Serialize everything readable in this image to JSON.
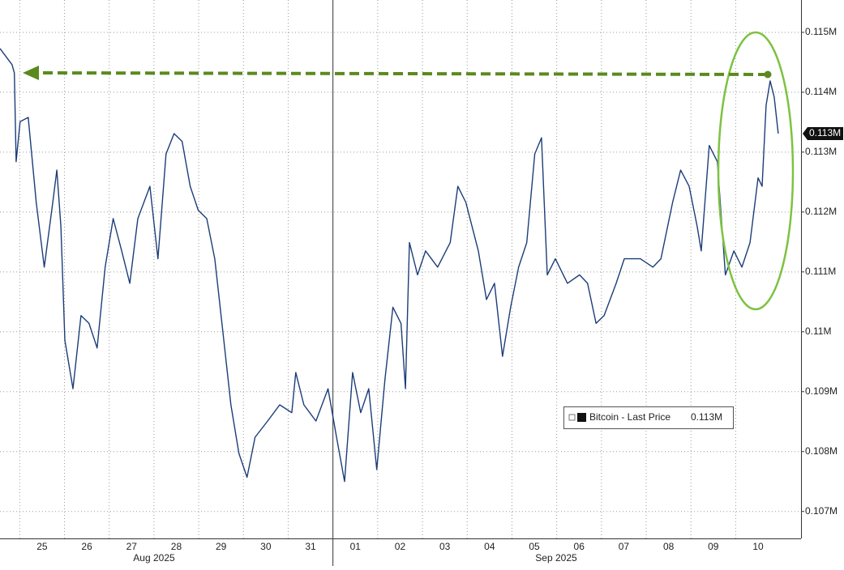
{
  "chart_data": {
    "type": "line",
    "series": [
      {
        "name": "Bitcoin - Last Price",
        "color": "#1c3d78",
        "x": [
          -0.44,
          -0.17,
          -0.12,
          -0.08,
          0.01,
          0.19,
          0.37,
          0.55,
          0.74,
          0.83,
          0.92,
          1.01,
          1.19,
          1.37,
          1.55,
          1.73,
          1.91,
          2.09,
          2.28,
          2.46,
          2.64,
          2.91,
          3.09,
          3.27,
          3.45,
          3.63,
          3.81,
          3.99,
          4.18,
          4.36,
          4.54,
          4.72,
          4.9,
          5.08,
          5.26,
          5.54,
          5.81,
          6.08,
          6.17,
          6.35,
          6.62,
          6.89,
          7.08,
          7.26,
          7.44,
          7.62,
          7.8,
          7.98,
          8.16,
          8.34,
          8.52,
          8.62,
          8.71,
          8.89,
          9.07,
          9.34,
          9.62,
          9.79,
          9.97,
          10.25,
          10.43,
          10.61,
          10.79,
          10.97,
          11.15,
          11.33,
          11.51,
          11.66,
          11.79,
          11.97,
          12.24,
          12.51,
          12.69,
          12.88,
          13.06,
          13.33,
          13.51,
          13.87,
          14.15,
          14.33,
          14.59,
          14.77,
          14.96,
          15.14,
          15.23,
          15.41,
          15.59,
          15.77,
          15.96,
          16.14,
          16.32,
          16.5,
          16.59,
          16.68,
          16.77,
          16.86,
          16.95
        ],
        "values": [
          114730,
          114460,
          114320,
          112840,
          113510,
          113580,
          112160,
          111080,
          112160,
          112700,
          111760,
          109860,
          109050,
          110270,
          110140,
          109730,
          111080,
          111890,
          111350,
          110810,
          111890,
          112430,
          111220,
          112970,
          113310,
          113180,
          112430,
          112030,
          111890,
          111220,
          110000,
          108780,
          107970,
          107570,
          108240,
          108510,
          108780,
          108650,
          109320,
          108780,
          108510,
          109050,
          108240,
          107500,
          109320,
          108650,
          109050,
          107700,
          109190,
          110410,
          110140,
          109050,
          111490,
          110950,
          111350,
          111080,
          111490,
          112430,
          112160,
          111350,
          110540,
          110810,
          109590,
          110410,
          111080,
          111490,
          112970,
          113240,
          110950,
          111220,
          110810,
          110950,
          110810,
          110140,
          110270,
          110810,
          111220,
          111220,
          111080,
          111220,
          112160,
          112700,
          112430,
          111760,
          111350,
          113110,
          112840,
          110950,
          111350,
          111080,
          111490,
          112570,
          112430,
          113780,
          114190,
          113920,
          113310
        ]
      }
    ],
    "ylim": [
      106550,
      115540
    ],
    "yticks": [
      {
        "value": 107000,
        "label": "0.107M"
      },
      {
        "value": 108000,
        "label": "0.108M"
      },
      {
        "value": 109000,
        "label": "0.109M"
      },
      {
        "value": 110000,
        "label": "0.11M"
      },
      {
        "value": 111000,
        "label": "0.111M"
      },
      {
        "value": 112000,
        "label": "0.112M"
      },
      {
        "value": 113000,
        "label": "0.113M"
      },
      {
        "value": 114000,
        "label": "0.114M"
      },
      {
        "value": 115000,
        "label": "0.115M"
      }
    ],
    "xlim": [
      -0.44,
      17.46
    ],
    "xticks": [
      {
        "value": 0,
        "label": "25"
      },
      {
        "value": 1,
        "label": "26"
      },
      {
        "value": 2,
        "label": "27"
      },
      {
        "value": 3,
        "label": "28"
      },
      {
        "value": 4,
        "label": "29"
      },
      {
        "value": 5,
        "label": "30"
      },
      {
        "value": 6,
        "label": "31"
      },
      {
        "value": 7,
        "label": "01"
      },
      {
        "value": 8,
        "label": "02"
      },
      {
        "value": 9,
        "label": "03"
      },
      {
        "value": 10,
        "label": "04"
      },
      {
        "value": 11,
        "label": "05"
      },
      {
        "value": 12,
        "label": "06"
      },
      {
        "value": 13,
        "label": "07"
      },
      {
        "value": 14,
        "label": "08"
      },
      {
        "value": 15,
        "label": "09"
      },
      {
        "value": 16,
        "label": "10"
      }
    ],
    "x_group_labels": [
      "Aug 2025",
      "Sep 2025"
    ],
    "last_price_label": "0.113M",
    "grid": true,
    "legend": "lower right"
  }
}
